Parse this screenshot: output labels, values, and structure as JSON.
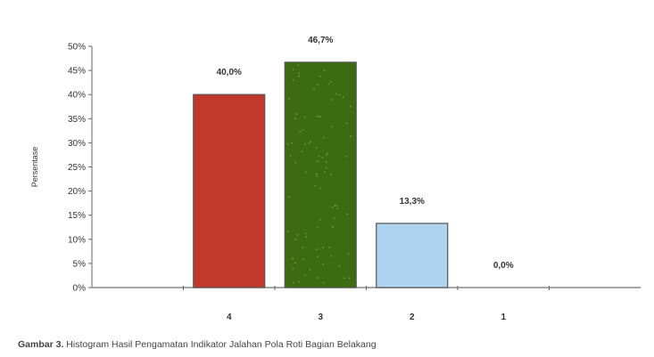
{
  "chart_data": {
    "type": "bar",
    "categories": [
      "4",
      "3",
      "2",
      "1"
    ],
    "values": [
      40.0,
      46.7,
      13.3,
      0.0
    ],
    "value_labels": [
      "40,0%",
      "46,7%",
      "13,3%",
      "0,0%"
    ],
    "ylabel": "Persentase",
    "ylim": [
      0,
      50
    ],
    "yticks": [
      "0%",
      "5%",
      "10%",
      "15%",
      "20%",
      "25%",
      "30%",
      "35%",
      "40%",
      "45%",
      "50%"
    ],
    "bar_colors": [
      "#c0392b",
      "#3d6b12",
      "#aed4f0",
      "#d8d8d8"
    ],
    "grid": false,
    "legend": "none"
  },
  "caption": {
    "label": "Gambar 3.",
    "text": "Histogram Hasil Pengamatan Indikator Jalahan Pola Roti Bagian Belakang"
  }
}
